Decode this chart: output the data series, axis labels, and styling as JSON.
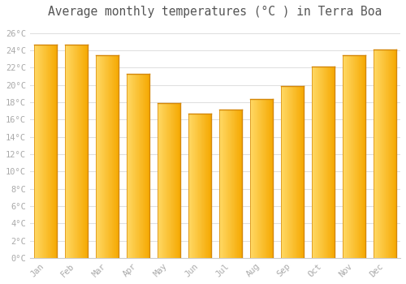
{
  "title": "Average monthly temperatures (°C ) in Terra Boa",
  "months": [
    "Jan",
    "Feb",
    "Mar",
    "Apr",
    "May",
    "Jun",
    "Jul",
    "Aug",
    "Sep",
    "Oct",
    "Nov",
    "Dec"
  ],
  "values": [
    24.7,
    24.7,
    23.4,
    21.3,
    17.9,
    16.7,
    17.2,
    18.4,
    19.9,
    22.1,
    23.4,
    24.1
  ],
  "bar_color_left": "#FFD966",
  "bar_color_right": "#F5A800",
  "bar_edge_color": "#D4870A",
  "background_color": "#FFFFFF",
  "grid_color": "#E0E0E0",
  "tick_label_color": "#AAAAAA",
  "title_color": "#555555",
  "ylim": [
    0,
    27
  ],
  "ytick_step": 2,
  "title_fontsize": 10.5,
  "bar_width": 0.75
}
